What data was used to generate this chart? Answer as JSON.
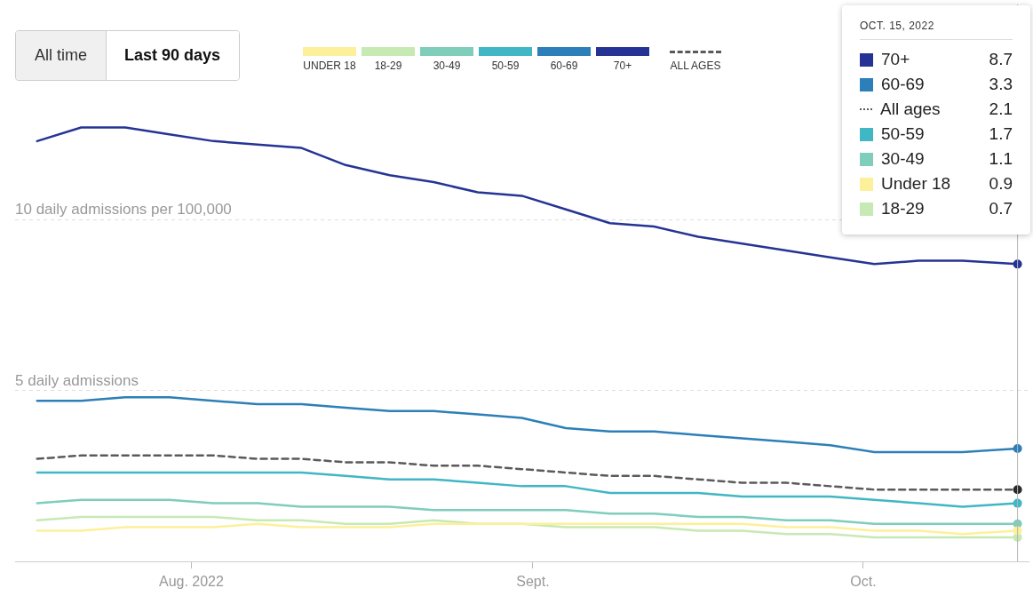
{
  "chart_data": {
    "type": "line",
    "x": [
      "2022-07-18",
      "2022-07-22",
      "2022-07-26",
      "2022-07-30",
      "2022-08-03",
      "2022-08-07",
      "2022-08-11",
      "2022-08-15",
      "2022-08-19",
      "2022-08-23",
      "2022-08-27",
      "2022-08-31",
      "2022-09-04",
      "2022-09-08",
      "2022-09-12",
      "2022-09-16",
      "2022-09-20",
      "2022-09-24",
      "2022-09-28",
      "2022-10-02",
      "2022-10-06",
      "2022-10-10",
      "2022-10-15"
    ],
    "xlim": [
      "2022-07-16",
      "2022-10-16"
    ],
    "xticks": [
      {
        "value": "2022-08-01",
        "label": "Aug. 2022"
      },
      {
        "value": "2022-09-01",
        "label": "Sept."
      },
      {
        "value": "2022-10-01",
        "label": "Oct."
      }
    ],
    "ylim": [
      0,
      16.3
    ],
    "yticks": [
      {
        "value": 0,
        "label": null
      },
      5,
      10
    ],
    "ylabel": "daily admissions per 100,000",
    "grid": "y",
    "legend": "top",
    "series": [
      {
        "name": "UNDER 18",
        "color": "#fdf09a",
        "values": [
          0.9,
          0.9,
          1.0,
          1.0,
          1.0,
          1.1,
          1.0,
          1.0,
          1.0,
          1.1,
          1.1,
          1.1,
          1.1,
          1.1,
          1.1,
          1.1,
          1.1,
          1.0,
          1.0,
          0.9,
          0.9,
          0.8,
          0.9
        ]
      },
      {
        "name": "18-29",
        "color": "#c7e9b4",
        "values": [
          1.2,
          1.3,
          1.3,
          1.3,
          1.3,
          1.2,
          1.2,
          1.1,
          1.1,
          1.2,
          1.1,
          1.1,
          1.0,
          1.0,
          1.0,
          0.9,
          0.9,
          0.8,
          0.8,
          0.7,
          0.7,
          0.7,
          0.7
        ]
      },
      {
        "name": "30-49",
        "color": "#7fcdbb",
        "values": [
          1.7,
          1.8,
          1.8,
          1.8,
          1.7,
          1.7,
          1.6,
          1.6,
          1.6,
          1.5,
          1.5,
          1.5,
          1.5,
          1.4,
          1.4,
          1.3,
          1.3,
          1.2,
          1.2,
          1.1,
          1.1,
          1.1,
          1.1
        ]
      },
      {
        "name": "50-59",
        "color": "#41b6c4",
        "values": [
          2.6,
          2.6,
          2.6,
          2.6,
          2.6,
          2.6,
          2.6,
          2.5,
          2.4,
          2.4,
          2.3,
          2.2,
          2.2,
          2.0,
          2.0,
          2.0,
          1.9,
          1.9,
          1.9,
          1.8,
          1.7,
          1.6,
          1.7
        ]
      },
      {
        "name": "60-69",
        "color": "#2c7fb8",
        "values": [
          4.7,
          4.7,
          4.8,
          4.8,
          4.7,
          4.6,
          4.6,
          4.5,
          4.4,
          4.4,
          4.3,
          4.2,
          3.9,
          3.8,
          3.8,
          3.7,
          3.6,
          3.5,
          3.4,
          3.2,
          3.2,
          3.2,
          3.3
        ]
      },
      {
        "name": "70+",
        "color": "#253494",
        "values": [
          12.3,
          12.7,
          12.7,
          12.5,
          12.3,
          12.2,
          12.1,
          11.6,
          11.3,
          11.1,
          10.8,
          10.7,
          10.3,
          9.9,
          9.8,
          9.5,
          9.3,
          9.1,
          8.9,
          8.7,
          8.8,
          8.8,
          8.7
        ]
      },
      {
        "name": "ALL AGES",
        "color": "#5a5a5a",
        "line_style": "dashed",
        "values": [
          3.0,
          3.1,
          3.1,
          3.1,
          3.1,
          3.0,
          3.0,
          2.9,
          2.9,
          2.8,
          2.8,
          2.7,
          2.6,
          2.5,
          2.5,
          2.4,
          2.3,
          2.3,
          2.2,
          2.1,
          2.1,
          2.1,
          2.1
        ]
      }
    ],
    "ref_lines": [
      {
        "axis": "x",
        "value": "2022-10-15",
        "color": "#b4b4b4"
      }
    ],
    "annotations": [
      "All time",
      "Last 90 days",
      "OCT. 15, 2022",
      "70+",
      "8.7",
      "60-69",
      "3.3",
      "All ages",
      "2.1",
      "50-59",
      "1.7",
      "30-49",
      "1.1",
      "Under 18",
      "0.9",
      "18-29",
      "0.7",
      "daily admissions"
    ]
  }
}
